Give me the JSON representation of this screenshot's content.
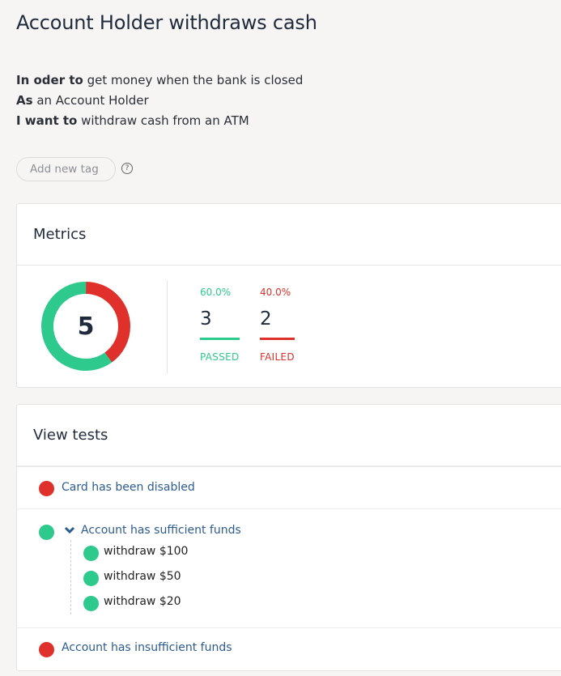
{
  "title": "Account Holder withdraws cash",
  "story": [
    {
      "keyword": "In oder to",
      "text": " get money when the bank is closed"
    },
    {
      "keyword": "As",
      "text": " an Account Holder"
    },
    {
      "keyword": "I want to",
      "text": " withdraw cash from an ATM"
    }
  ],
  "tags": {
    "placeholder": "Add new tag",
    "help_symbol": "?"
  },
  "metrics": {
    "heading": "Metrics",
    "total": "5",
    "passed": {
      "percent": "60.0%",
      "count": "3",
      "label": "PASSED"
    },
    "failed": {
      "percent": "40.0%",
      "count": "2",
      "label": "FAILED"
    },
    "colors": {
      "passed": "#2ec98d",
      "failed": "#e0302b"
    }
  },
  "tests": {
    "heading": "View tests",
    "items": [
      {
        "name": "Card has been disabled",
        "status": "failed"
      },
      {
        "name": "Account has sufficient funds",
        "status": "passed",
        "children": [
          {
            "name": "withdraw $100",
            "status": "passed"
          },
          {
            "name": "withdraw $50",
            "status": "passed"
          },
          {
            "name": "withdraw $20",
            "status": "passed"
          }
        ]
      },
      {
        "name": "Account has insufficient funds",
        "status": "failed"
      }
    ]
  }
}
